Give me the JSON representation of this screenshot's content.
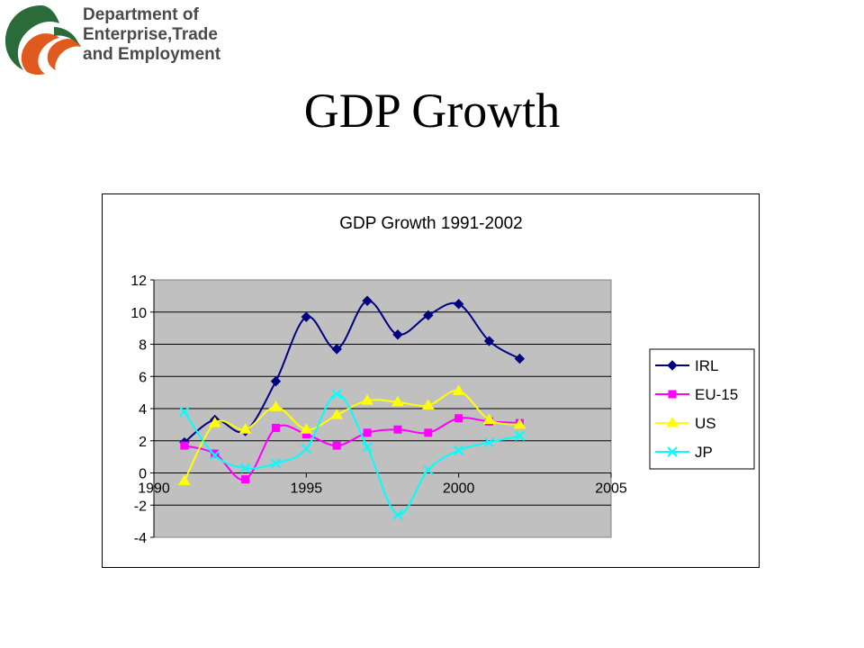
{
  "logo": {
    "line1": "Department of",
    "line2": "Enterprise,Trade",
    "line3": "and Employment"
  },
  "slide_title": "GDP Growth",
  "chart_data": {
    "type": "line",
    "title": "GDP Growth 1991-2002",
    "xlabel": "",
    "ylabel": "",
    "xlim": [
      1990,
      2005
    ],
    "ylim": [
      -4,
      12
    ],
    "x_ticks": [
      1990,
      1995,
      2000,
      2005
    ],
    "y_ticks": [
      -4,
      -2,
      0,
      2,
      4,
      6,
      8,
      10,
      12
    ],
    "grid": true,
    "legend": "right",
    "x": [
      1991,
      1992,
      1993,
      1994,
      1995,
      1996,
      1997,
      1998,
      1999,
      2000,
      2001,
      2002
    ],
    "series": [
      {
        "name": "IRL",
        "color": "#000080",
        "marker": "diamond",
        "values": [
          1.9,
          3.3,
          2.6,
          5.7,
          9.7,
          7.7,
          10.7,
          8.6,
          9.8,
          10.5,
          8.2,
          7.1
        ]
      },
      {
        "name": "EU-15",
        "color": "#ff00ff",
        "marker": "square",
        "values": [
          1.7,
          1.2,
          -0.4,
          2.8,
          2.4,
          1.7,
          2.5,
          2.7,
          2.5,
          3.4,
          3.2,
          3.1
        ]
      },
      {
        "name": "US",
        "color": "#ffff00",
        "marker": "triangle",
        "values": [
          -0.5,
          3.1,
          2.7,
          4.1,
          2.7,
          3.6,
          4.5,
          4.4,
          4.2,
          5.1,
          3.3,
          3.0
        ]
      },
      {
        "name": "JP",
        "color": "#00ffff",
        "marker": "x",
        "values": [
          3.8,
          1.1,
          0.3,
          0.6,
          1.5,
          4.9,
          1.6,
          -2.6,
          0.2,
          1.4,
          1.9,
          2.3
        ]
      }
    ]
  }
}
